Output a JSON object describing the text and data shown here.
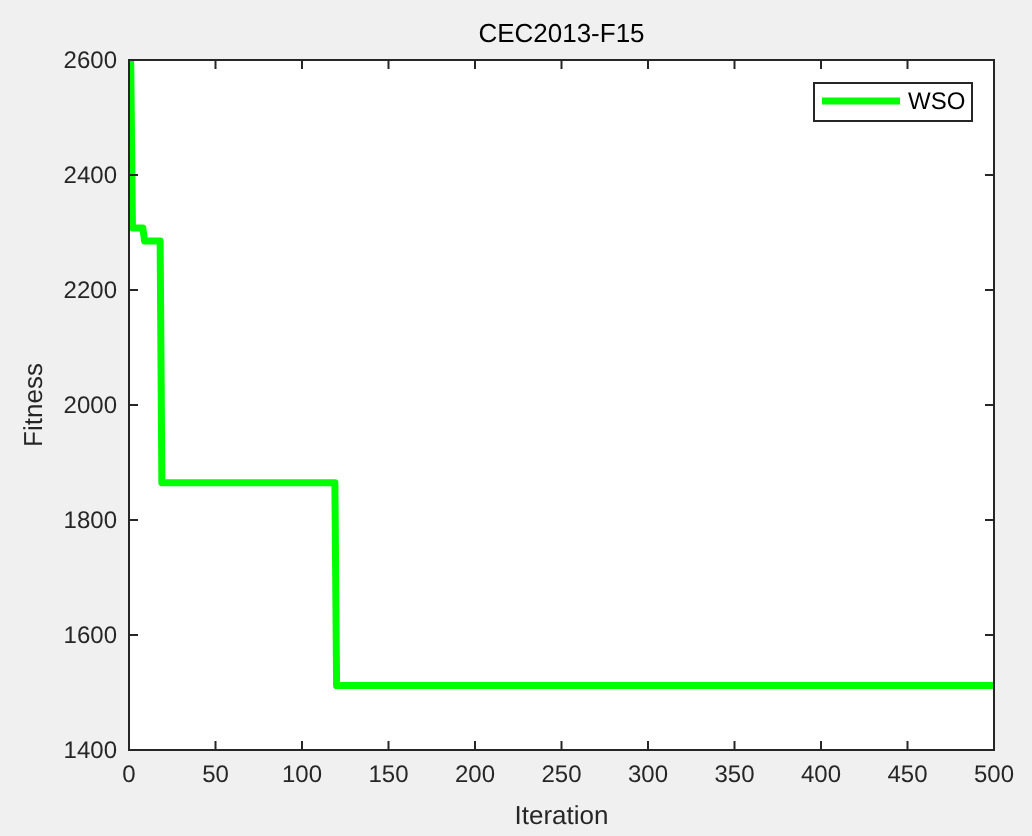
{
  "chart_data": {
    "type": "line",
    "title": "CEC2013-F15",
    "xlabel": "Iteration",
    "ylabel": "Fitness",
    "x": [
      1,
      2,
      8,
      9,
      18,
      19,
      119,
      120,
      500
    ],
    "series": [
      {
        "name": "WSO",
        "color": "#00ff00",
        "values": [
          2595,
          2308,
          2308,
          2285,
          2285,
          1865,
          1865,
          1512,
          1512
        ]
      }
    ],
    "xlim": [
      0,
      500
    ],
    "ylim": [
      1400,
      2600
    ],
    "xticks": [
      0,
      50,
      100,
      150,
      200,
      250,
      300,
      350,
      400,
      450,
      500
    ],
    "yticks": [
      1400,
      1600,
      1800,
      2000,
      2200,
      2400,
      2600
    ],
    "grid": false,
    "legend": "top right",
    "marker": "none",
    "line_style": "solid"
  }
}
